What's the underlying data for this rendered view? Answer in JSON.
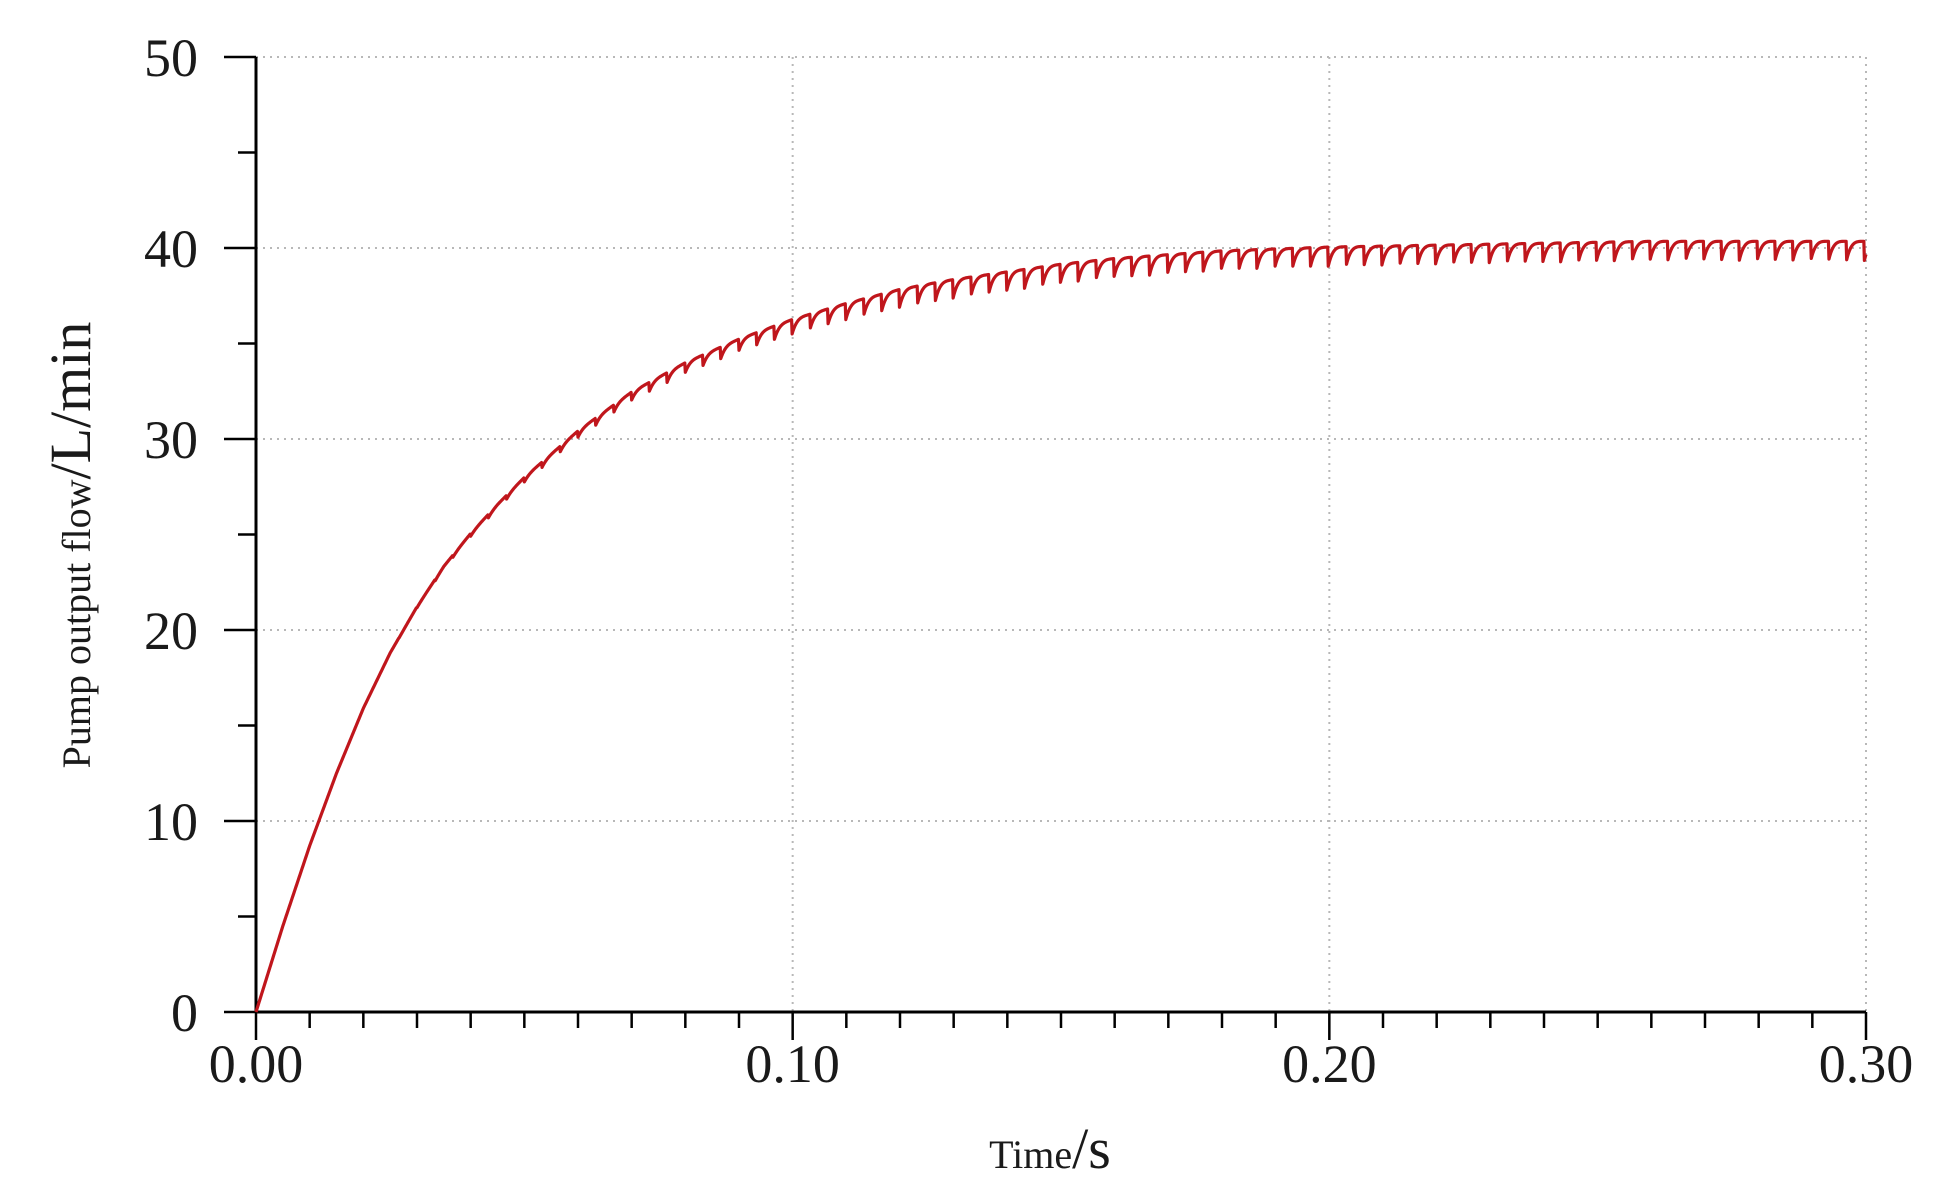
{
  "chart_data": {
    "type": "line",
    "title": "",
    "xlabel": {
      "main": "Time",
      "unit": "/s"
    },
    "ylabel": {
      "main": "Pump output flow",
      "unit": "/L/min"
    },
    "xlim": [
      0,
      0.3
    ],
    "ylim": [
      0,
      50
    ],
    "grid": true,
    "grid_style": "dotted",
    "legend": "none",
    "line_color": "#c0161c",
    "x_tick_labels": [
      "0.00",
      "0.10",
      "0.20",
      "0.30"
    ],
    "x_ticks": [
      0,
      0.1,
      0.2,
      0.3
    ],
    "y_tick_labels": [
      "0",
      "10",
      "20",
      "30",
      "40",
      "50"
    ],
    "y_ticks": [
      0,
      10,
      20,
      30,
      40,
      50
    ],
    "series": [
      {
        "x": [
          0,
          0.005,
          0.01,
          0.015,
          0.02,
          0.025,
          0.03,
          0.035,
          0.04,
          0.045,
          0.05,
          0.06,
          0.07,
          0.08,
          0.09,
          0.1,
          0.11,
          0.12,
          0.13,
          0.14,
          0.15,
          0.16,
          0.17,
          0.18,
          0.19,
          0.2,
          0.22,
          0.24,
          0.26,
          0.28,
          0.3
        ],
        "y": [
          0,
          4.5,
          8.7,
          12.5,
          15.9,
          18.8,
          21.2,
          23.3,
          25.0,
          26.5,
          27.9,
          30.3,
          32.3,
          33.8,
          35.0,
          36.0,
          36.8,
          37.5,
          38.0,
          38.4,
          38.8,
          39.1,
          39.3,
          39.5,
          39.6,
          39.7,
          39.8,
          39.9,
          40.0,
          40.0,
          40.0
        ],
        "ripple_amplitude": 1.0,
        "ripple_period": 0.00333
      }
    ]
  }
}
